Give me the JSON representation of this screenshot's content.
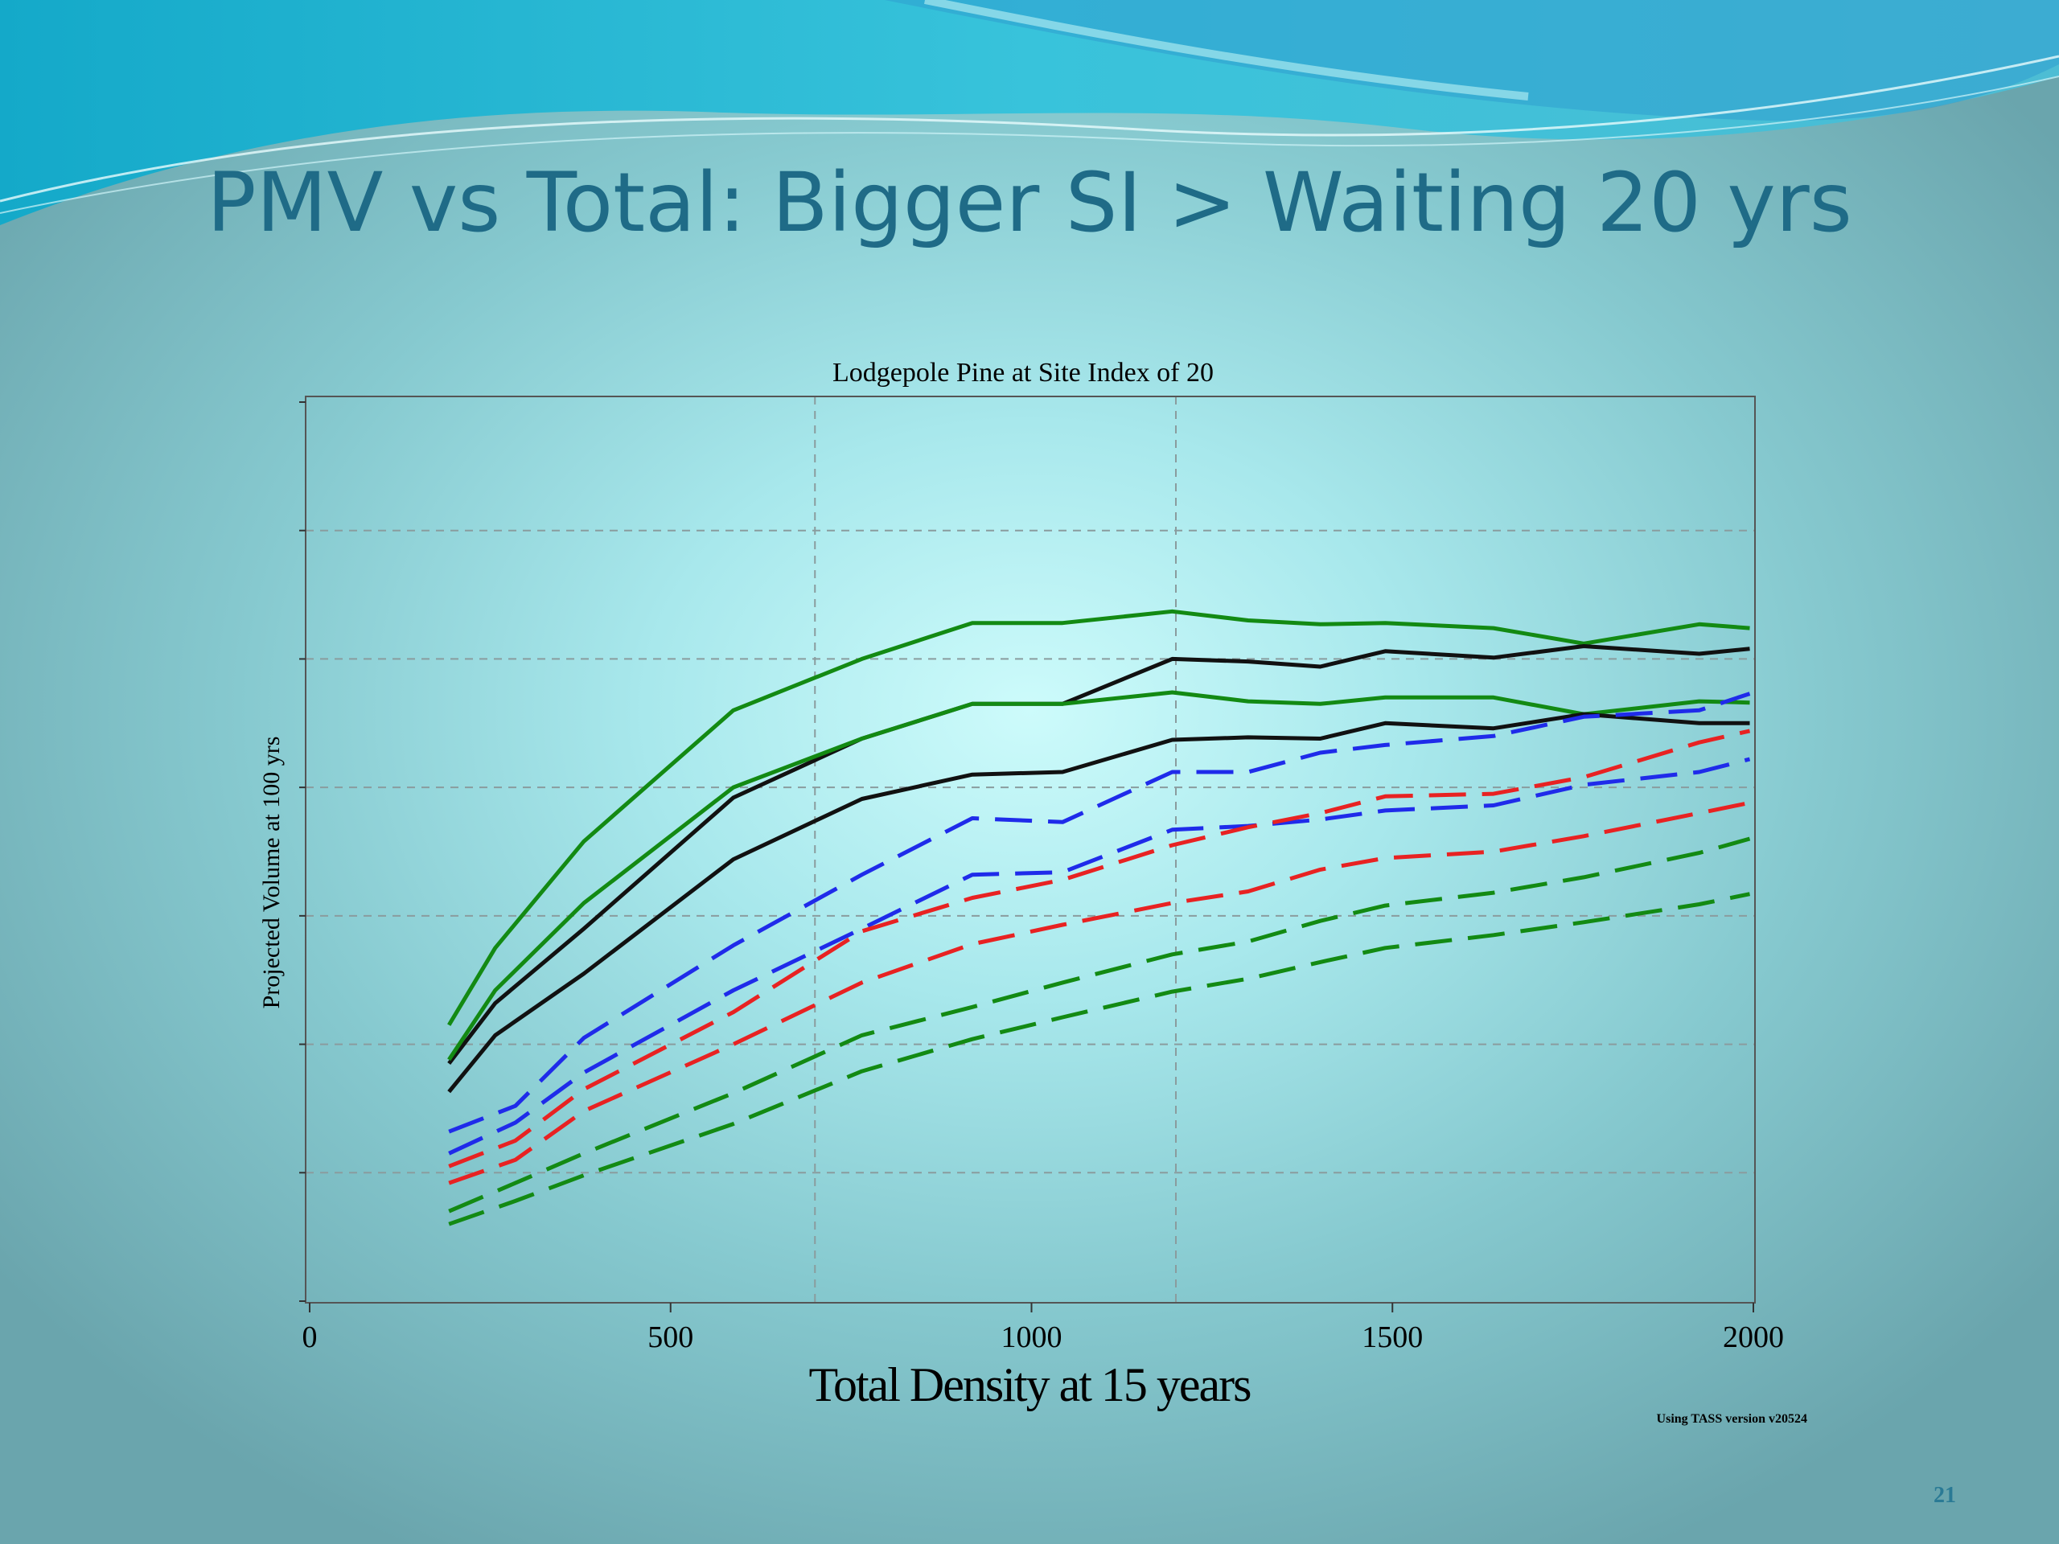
{
  "slide": {
    "title": "PMV vs Total: Bigger SI > Waiting 20 yrs",
    "page_number": "21"
  },
  "colors": {
    "green": "#138a13",
    "black": "#111111",
    "blue": "#1f2bea",
    "red": "#e82222",
    "title": "#1f6b87"
  },
  "chart_data": {
    "type": "line",
    "title": "Lodgepole Pine at Site Index of 20",
    "xlabel": "Total Density at 15 years",
    "ylabel": "Projected Volume at 100 yrs",
    "source_note": "Using TASS version v20524",
    "xlim": [
      0,
      2000
    ],
    "ylim": [
      0,
      7
    ],
    "x_ticks": [
      0,
      500,
      1000,
      1500,
      2000
    ],
    "y_gridlines": [
      1,
      2,
      3,
      4,
      5,
      6
    ],
    "x_reference_lines": [
      700,
      1200
    ],
    "grid": true,
    "series": [
      {
        "color": "green",
        "dash": false,
        "x": [
          193,
          257,
          380,
          587,
          765,
          918,
          1043,
          1195,
          1300,
          1400,
          1490,
          1640,
          1765,
          1925,
          1995
        ],
        "y": [
          2.15,
          2.75,
          3.58,
          4.6,
          5.0,
          5.28,
          5.28,
          5.37,
          5.3,
          5.27,
          5.28,
          5.24,
          5.12,
          5.27,
          5.24
        ]
      },
      {
        "color": "black",
        "dash": false,
        "x": [
          193,
          257,
          380,
          587,
          765,
          918,
          1043,
          1195,
          1300,
          1400,
          1490,
          1640,
          1765,
          1925,
          1995
        ],
        "y": [
          1.85,
          2.32,
          2.9,
          3.92,
          4.38,
          4.65,
          4.65,
          5.0,
          4.98,
          4.94,
          5.06,
          5.01,
          5.1,
          5.04,
          5.08
        ]
      },
      {
        "color": "green",
        "dash": false,
        "x": [
          193,
          257,
          380,
          587,
          765,
          918,
          1043,
          1195,
          1300,
          1400,
          1490,
          1640,
          1765,
          1925,
          1995
        ],
        "y": [
          1.88,
          2.42,
          3.1,
          4.0,
          4.38,
          4.65,
          4.65,
          4.74,
          4.67,
          4.65,
          4.7,
          4.7,
          4.57,
          4.67,
          4.66
        ]
      },
      {
        "color": "black",
        "dash": false,
        "x": [
          193,
          257,
          380,
          587,
          765,
          918,
          1043,
          1195,
          1300,
          1400,
          1490,
          1640,
          1765,
          1925,
          1995
        ],
        "y": [
          1.63,
          2.07,
          2.55,
          3.44,
          3.91,
          4.1,
          4.12,
          4.37,
          4.39,
          4.38,
          4.5,
          4.46,
          4.57,
          4.5,
          4.5
        ]
      },
      {
        "color": "blue",
        "dash": true,
        "x": [
          193,
          285,
          380,
          587,
          765,
          918,
          1043,
          1195,
          1300,
          1400,
          1490,
          1640,
          1765,
          1925,
          1995
        ],
        "y": [
          1.32,
          1.52,
          2.05,
          2.77,
          3.32,
          3.76,
          3.73,
          4.12,
          4.12,
          4.27,
          4.33,
          4.4,
          4.55,
          4.6,
          4.73
        ]
      },
      {
        "color": "blue",
        "dash": true,
        "x": [
          193,
          285,
          380,
          587,
          765,
          918,
          1043,
          1195,
          1300,
          1400,
          1490,
          1640,
          1765,
          1925,
          1995
        ],
        "y": [
          1.15,
          1.39,
          1.78,
          2.42,
          2.9,
          3.32,
          3.34,
          3.67,
          3.7,
          3.75,
          3.82,
          3.86,
          4.02,
          4.12,
          4.22
        ]
      },
      {
        "color": "red",
        "dash": true,
        "x": [
          193,
          285,
          380,
          587,
          765,
          918,
          1043,
          1195,
          1300,
          1400,
          1490,
          1640,
          1765,
          1925,
          1995
        ],
        "y": [
          1.05,
          1.25,
          1.65,
          2.25,
          2.88,
          3.14,
          3.28,
          3.55,
          3.69,
          3.8,
          3.93,
          3.95,
          4.08,
          4.35,
          4.44
        ]
      },
      {
        "color": "red",
        "dash": true,
        "x": [
          193,
          285,
          380,
          587,
          765,
          918,
          1043,
          1195,
          1300,
          1400,
          1490,
          1640,
          1765,
          1925,
          1995
        ],
        "y": [
          0.92,
          1.1,
          1.48,
          2.0,
          2.48,
          2.78,
          2.93,
          3.1,
          3.19,
          3.36,
          3.45,
          3.5,
          3.62,
          3.8,
          3.88
        ]
      },
      {
        "color": "green",
        "dash": true,
        "x": [
          193,
          285,
          380,
          587,
          765,
          918,
          1043,
          1195,
          1300,
          1400,
          1490,
          1640,
          1765,
          1925,
          1995
        ],
        "y": [
          0.7,
          0.92,
          1.15,
          1.62,
          2.07,
          2.29,
          2.48,
          2.7,
          2.8,
          2.96,
          3.08,
          3.18,
          3.3,
          3.49,
          3.6
        ]
      },
      {
        "color": "green",
        "dash": true,
        "x": [
          193,
          285,
          380,
          587,
          765,
          918,
          1043,
          1195,
          1300,
          1400,
          1490,
          1640,
          1765,
          1925,
          1995
        ],
        "y": [
          0.6,
          0.78,
          0.98,
          1.38,
          1.79,
          2.04,
          2.21,
          2.41,
          2.51,
          2.64,
          2.75,
          2.85,
          2.95,
          3.09,
          3.17
        ]
      }
    ]
  }
}
